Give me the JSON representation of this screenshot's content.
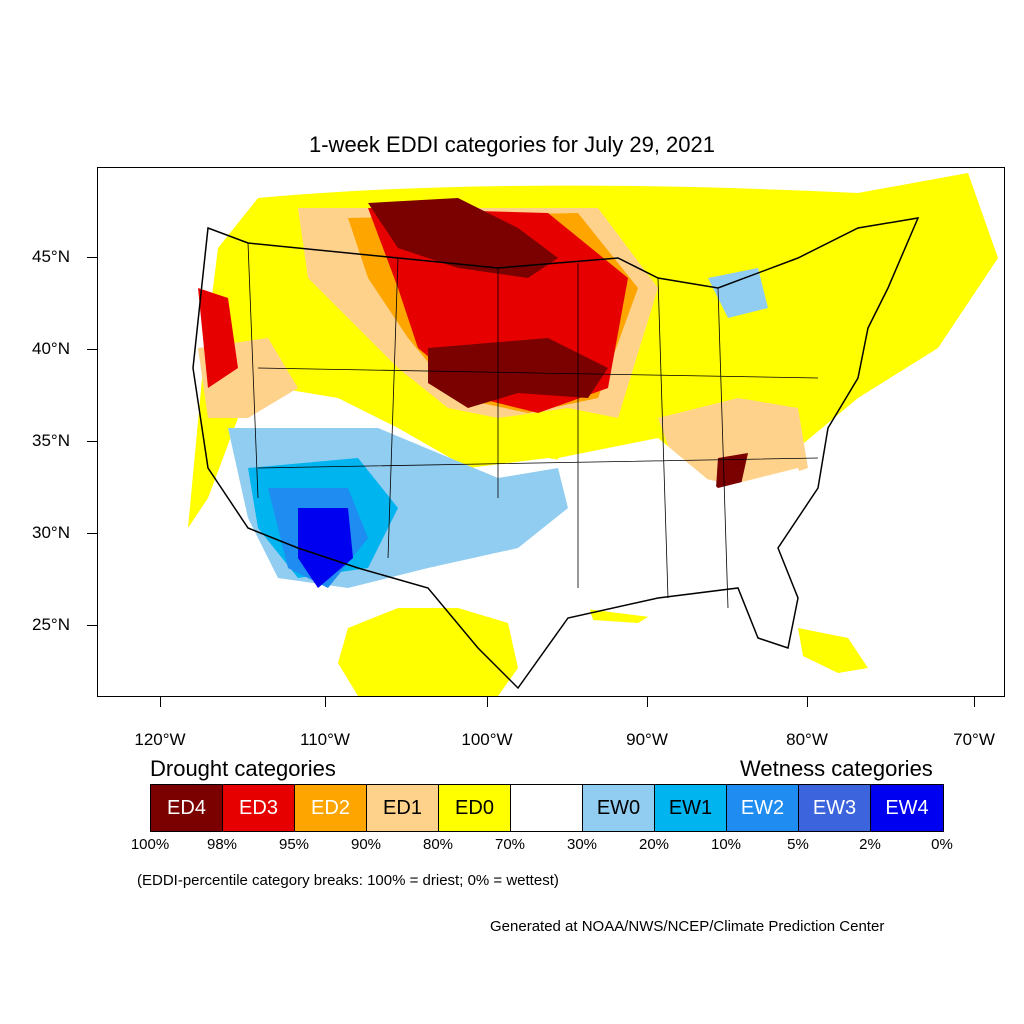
{
  "title": "1-week EDDI categories for July 29, 2021",
  "lat_labels": [
    "45°N",
    "40°N",
    "35°N",
    "30°N",
    "25°N"
  ],
  "lon_labels": [
    "120°W",
    "110°W",
    "100°W",
    "90°W",
    "80°W",
    "70°W"
  ],
  "legend": {
    "drought_heading": "Drought categories",
    "wetness_heading": "Wetness categories",
    "categories": [
      {
        "label": "ED4",
        "color": "#7b0000",
        "text_color": "#ffffff"
      },
      {
        "label": "ED3",
        "color": "#e60000",
        "text_color": "#ffffff"
      },
      {
        "label": "ED2",
        "color": "#ffa500",
        "text_color": "#ffffff"
      },
      {
        "label": "ED1",
        "color": "#ffd28c",
        "text_color": "#000000"
      },
      {
        "label": "ED0",
        "color": "#ffff00",
        "text_color": "#000000"
      },
      {
        "label": "",
        "color": "#ffffff",
        "text_color": "#000000"
      },
      {
        "label": "EW0",
        "color": "#91cdf0",
        "text_color": "#000000"
      },
      {
        "label": "EW1",
        "color": "#00b4f0",
        "text_color": "#000000"
      },
      {
        "label": "EW2",
        "color": "#1e8cf0",
        "text_color": "#ffffff"
      },
      {
        "label": "EW3",
        "color": "#3c64dc",
        "text_color": "#ffffff"
      },
      {
        "label": "EW4",
        "color": "#0000f0",
        "text_color": "#ffffff"
      }
    ],
    "percent_breaks": [
      "100%",
      "98%",
      "95%",
      "90%",
      "80%",
      "70%",
      "30%",
      "20%",
      "10%",
      "5%",
      "2%",
      "0%"
    ]
  },
  "note": "(EDDI-percentile category breaks: 100% = driest; 0% = wettest)",
  "credit": "Generated at NOAA/NWS/NCEP/Climate Prediction Center"
}
